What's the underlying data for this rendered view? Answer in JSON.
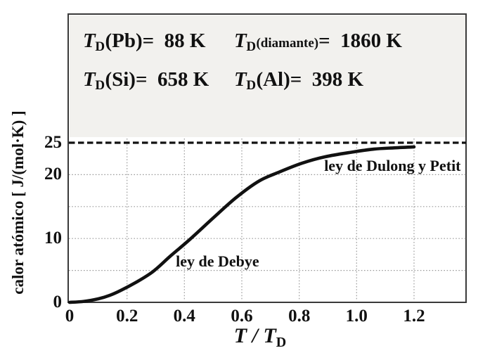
{
  "figure": {
    "colors": {
      "curve": "#111111",
      "dashed_line": "#111111",
      "grid": "#9c9c9c",
      "frame": "#3a3a3a",
      "info_box_bg": "#f2f1ee",
      "text": "#111111"
    },
    "info_box": {
      "entries": [
        {
          "sym": "T",
          "sub": "D",
          "rest": "(Pb)=  88 K"
        },
        {
          "sym": "T",
          "sub": "D",
          "name_small": "(diamante)",
          "rest": "=  1860 K"
        },
        {
          "sym": "T",
          "sub": "D",
          "rest": "(Si)=  658 K"
        },
        {
          "sym": "T",
          "sub": "D",
          "rest": "(Al)=  398 K"
        }
      ]
    }
  },
  "chart_data": {
    "type": "line",
    "title": "",
    "xlabel": "T / T_D",
    "xlabel_parts": {
      "t1": "T",
      "sep": " / ",
      "t2": "T",
      "sub": "D"
    },
    "ylabel": "calor atómico [ J/(mol·K) ]",
    "xlim": [
      0,
      1.38
    ],
    "ylim": [
      0,
      45
    ],
    "grid": {
      "style": "dotted",
      "x_values": [
        0.2,
        0.4,
        0.6,
        0.8,
        1.0,
        1.2
      ],
      "y_values": [
        5,
        10,
        15,
        20
      ]
    },
    "x_ticks": [
      {
        "v": 0.0,
        "label": "0"
      },
      {
        "v": 0.2,
        "label": "0.2"
      },
      {
        "v": 0.4,
        "label": "0.4"
      },
      {
        "v": 0.6,
        "label": "0.6"
      },
      {
        "v": 0.8,
        "label": "0.8"
      },
      {
        "v": 1.0,
        "label": "1.0"
      },
      {
        "v": 1.2,
        "label": "1.2"
      }
    ],
    "y_ticks": [
      {
        "v": 0,
        "label": "0"
      },
      {
        "v": 10,
        "label": "10"
      },
      {
        "v": 20,
        "label": "20"
      },
      {
        "v": 25,
        "label": "25"
      }
    ],
    "asymptote": {
      "value": 25,
      "style": "dashed",
      "label": "ley de Dulong y Petit"
    },
    "series": [
      {
        "name": "ley de Debye",
        "points": [
          [
            0.0,
            0.0
          ],
          [
            0.05,
            0.15
          ],
          [
            0.1,
            0.55
          ],
          [
            0.14,
            1.1
          ],
          [
            0.18,
            1.9
          ],
          [
            0.23,
            3.1
          ],
          [
            0.29,
            4.8
          ],
          [
            0.35,
            7.2
          ],
          [
            0.42,
            9.9
          ],
          [
            0.5,
            13.2
          ],
          [
            0.58,
            16.4
          ],
          [
            0.66,
            19.0
          ],
          [
            0.73,
            20.4
          ],
          [
            0.81,
            21.8
          ],
          [
            0.89,
            22.8
          ],
          [
            0.98,
            23.5
          ],
          [
            1.06,
            24.0
          ],
          [
            1.13,
            24.2
          ],
          [
            1.2,
            24.35
          ]
        ]
      }
    ],
    "annotations": [
      {
        "text": "ley de Debye",
        "x": 0.37,
        "y": 6.4
      },
      {
        "text": "ley de Dulong y Petit",
        "x": 0.887,
        "y": 21.4
      }
    ]
  }
}
